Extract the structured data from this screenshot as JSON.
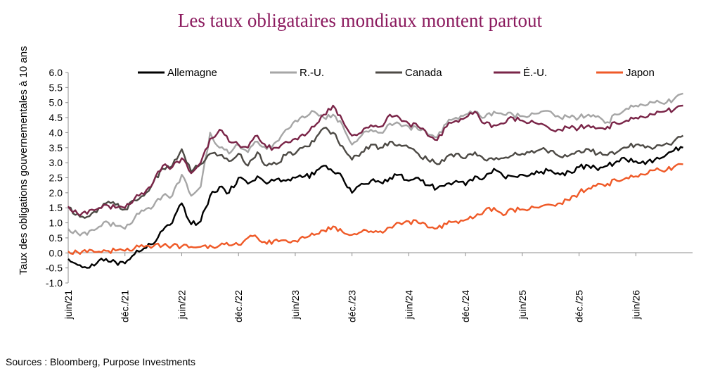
{
  "chart_data": {
    "type": "line",
    "title": "Les taux obligataires mondiaux montent partout",
    "ylabel": "Taux des obligations gouvernementales à 10 ans",
    "xlabel": "",
    "ylim": [
      -1.0,
      6.0
    ],
    "yticks": [
      "6.0",
      "5.5",
      "5.0",
      "4.5",
      "4.0",
      "3.5",
      "3.0",
      "2.5",
      "2.0",
      "1.5",
      "1.0",
      "0.5",
      "0.0",
      "-0.5",
      "-1.0"
    ],
    "x_range": [
      "2021-06",
      "2026-12"
    ],
    "xticks": [
      {
        "label": "juin/21",
        "date": "2021-06"
      },
      {
        "label": "déc./21",
        "date": "2021-12"
      },
      {
        "label": "juin/22",
        "date": "2022-06"
      },
      {
        "label": "déc./22",
        "date": "2022-12"
      },
      {
        "label": "juin/23",
        "date": "2023-06"
      },
      {
        "label": "déc./23",
        "date": "2023-12"
      },
      {
        "label": "juin/24",
        "date": "2024-06"
      },
      {
        "label": "déc./24",
        "date": "2024-12"
      },
      {
        "label": "juin/25",
        "date": "2025-06"
      },
      {
        "label": "déc./25",
        "date": "2025-12"
      },
      {
        "label": "juin/26",
        "date": "2026-06"
      }
    ],
    "legend_position": "top",
    "grid": false,
    "x": [
      "2021-06",
      "2021-07",
      "2021-08",
      "2021-09",
      "2021-10",
      "2021-11",
      "2021-12",
      "2022-01",
      "2022-02",
      "2022-03",
      "2022-04",
      "2022-05",
      "2022-06",
      "2022-07",
      "2022-08",
      "2022-09",
      "2022-10",
      "2022-11",
      "2022-12",
      "2023-01",
      "2023-02",
      "2023-03",
      "2023-04",
      "2023-05",
      "2023-06",
      "2023-07",
      "2023-08",
      "2023-09",
      "2023-10",
      "2023-11",
      "2023-12",
      "2024-01",
      "2024-02",
      "2024-03",
      "2024-04",
      "2024-05",
      "2024-06",
      "2024-07",
      "2024-08",
      "2024-09",
      "2024-10",
      "2024-11",
      "2024-12",
      "2025-01",
      "2025-02",
      "2025-03",
      "2025-04",
      "2025-05",
      "2025-06",
      "2025-07",
      "2025-08",
      "2025-09",
      "2025-10",
      "2025-11",
      "2025-12",
      "2026-01",
      "2026-02",
      "2026-03",
      "2026-04",
      "2026-05",
      "2026-06",
      "2026-07",
      "2026-08",
      "2026-09",
      "2026-10",
      "2026-11"
    ],
    "series": [
      {
        "name": "Allemagne",
        "color": "#000000",
        "values": [
          -0.2,
          -0.4,
          -0.5,
          -0.35,
          -0.2,
          -0.3,
          -0.35,
          -0.05,
          0.15,
          0.3,
          0.75,
          1.0,
          1.65,
          0.95,
          1.05,
          1.9,
          2.2,
          2.0,
          2.5,
          2.3,
          2.55,
          2.3,
          2.45,
          2.4,
          2.5,
          2.55,
          2.6,
          2.9,
          2.7,
          2.5,
          2.0,
          2.3,
          2.4,
          2.35,
          2.5,
          2.6,
          2.4,
          2.5,
          2.25,
          2.15,
          2.3,
          2.4,
          2.25,
          2.55,
          2.5,
          2.8,
          2.55,
          2.55,
          2.6,
          2.65,
          2.7,
          2.75,
          2.6,
          2.7,
          2.85,
          2.9,
          2.75,
          2.9,
          3.05,
          3.1,
          3.05,
          2.95,
          3.1,
          3.2,
          3.4,
          3.5
        ]
      },
      {
        "name": "R.-U.",
        "color": "#a6a6a6",
        "values": [
          0.8,
          0.65,
          0.6,
          0.8,
          1.05,
          0.9,
          0.8,
          1.15,
          1.4,
          1.55,
          1.9,
          1.9,
          2.6,
          1.9,
          2.2,
          4.0,
          3.5,
          3.3,
          3.6,
          3.35,
          3.7,
          3.45,
          3.7,
          4.1,
          4.4,
          4.5,
          4.7,
          4.5,
          4.6,
          4.25,
          3.6,
          3.9,
          4.1,
          4.0,
          4.3,
          4.3,
          4.2,
          4.1,
          3.95,
          3.85,
          4.3,
          4.5,
          4.6,
          4.7,
          4.5,
          4.7,
          4.6,
          4.6,
          4.55,
          4.65,
          4.7,
          4.7,
          4.5,
          4.5,
          4.5,
          4.6,
          4.55,
          4.35,
          4.6,
          4.8,
          4.9,
          4.9,
          5.0,
          4.95,
          5.1,
          5.3
        ]
      },
      {
        "name": "Canada",
        "color": "#4d4a45",
        "values": [
          1.5,
          1.3,
          1.2,
          1.35,
          1.65,
          1.6,
          1.45,
          1.75,
          1.9,
          2.35,
          2.8,
          2.9,
          3.45,
          2.7,
          2.95,
          3.3,
          3.25,
          3.05,
          3.3,
          2.9,
          3.35,
          2.9,
          2.95,
          3.25,
          3.3,
          3.55,
          3.7,
          4.15,
          4.0,
          3.55,
          3.1,
          3.35,
          3.6,
          3.5,
          3.7,
          3.6,
          3.5,
          3.3,
          3.1,
          2.95,
          3.2,
          3.3,
          3.15,
          3.35,
          3.1,
          3.1,
          3.15,
          3.25,
          3.3,
          3.4,
          3.45,
          3.4,
          3.2,
          3.25,
          3.4,
          3.45,
          3.3,
          3.25,
          3.35,
          3.5,
          3.6,
          3.5,
          3.5,
          3.6,
          3.7,
          3.9
        ]
      },
      {
        "name": "É.-U.",
        "color": "#7a2548",
        "values": [
          1.55,
          1.3,
          1.3,
          1.45,
          1.6,
          1.5,
          1.5,
          1.8,
          1.95,
          2.35,
          2.9,
          2.85,
          3.15,
          2.65,
          3.0,
          3.8,
          4.1,
          3.7,
          3.6,
          3.5,
          3.9,
          3.5,
          3.5,
          3.7,
          3.8,
          3.9,
          4.2,
          4.6,
          4.9,
          4.4,
          3.9,
          4.0,
          4.25,
          4.2,
          4.6,
          4.5,
          4.3,
          4.2,
          3.9,
          3.75,
          4.2,
          4.4,
          4.5,
          4.7,
          4.3,
          4.25,
          4.3,
          4.5,
          4.4,
          4.4,
          4.3,
          4.1,
          4.1,
          4.15,
          4.15,
          4.25,
          4.15,
          4.2,
          4.3,
          4.4,
          4.5,
          4.5,
          4.6,
          4.7,
          4.75,
          4.9
        ]
      },
      {
        "name": "Japon",
        "color": "#ef5a28",
        "values": [
          0.05,
          0.02,
          0.02,
          0.03,
          0.07,
          0.08,
          0.07,
          0.15,
          0.2,
          0.22,
          0.24,
          0.24,
          0.22,
          0.2,
          0.2,
          0.25,
          0.25,
          0.25,
          0.27,
          0.5,
          0.5,
          0.3,
          0.45,
          0.42,
          0.4,
          0.5,
          0.6,
          0.75,
          0.88,
          0.7,
          0.6,
          0.7,
          0.72,
          0.72,
          0.85,
          1.0,
          1.05,
          1.0,
          0.85,
          0.82,
          0.95,
          1.05,
          1.1,
          1.2,
          1.4,
          1.5,
          1.25,
          1.45,
          1.45,
          1.55,
          1.55,
          1.6,
          1.65,
          1.75,
          2.0,
          2.15,
          2.3,
          2.3,
          2.4,
          2.5,
          2.55,
          2.6,
          2.75,
          2.7,
          2.85,
          2.95
        ]
      }
    ]
  },
  "source": "Sources : Bloomberg, Purpose Investments"
}
